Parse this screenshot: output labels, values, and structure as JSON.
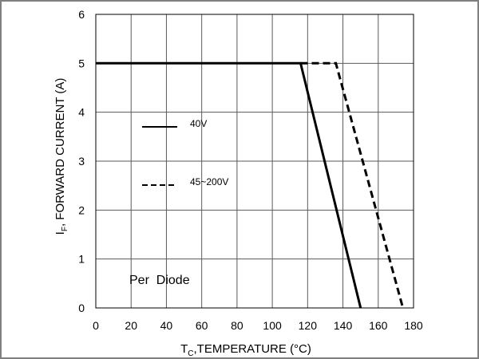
{
  "chart_data": {
    "type": "line",
    "title": "",
    "xlabel": "T",
    "xlabel_subscript": "C",
    "xlabel_rest": ",TEMPERATURE (°C)",
    "ylabel": "I",
    "ylabel_subscript": "F",
    "ylabel_rest": ", FORWARD CURRENT (A)",
    "xlim": [
      0,
      180
    ],
    "ylim": [
      0,
      6
    ],
    "xticks": [
      "0",
      "20",
      "40",
      "60",
      "80",
      "100",
      "120",
      "140",
      "160",
      "180"
    ],
    "yticks": [
      "0",
      "1",
      "2",
      "3",
      "4",
      "5",
      "6"
    ],
    "grid": true,
    "legend_position": "left-middle",
    "annotation": "Per  Diode",
    "series": [
      {
        "name": "40V",
        "style": "solid",
        "x": [
          0,
          116,
          150
        ],
        "y": [
          5,
          5,
          0
        ]
      },
      {
        "name": "45~200V",
        "style": "dashed",
        "x": [
          116,
          136,
          174
        ],
        "y": [
          5,
          5,
          0
        ]
      }
    ],
    "colors": {
      "line": "#000000",
      "grid": "#5a5a5a",
      "frame": "#7f7f7f"
    }
  }
}
